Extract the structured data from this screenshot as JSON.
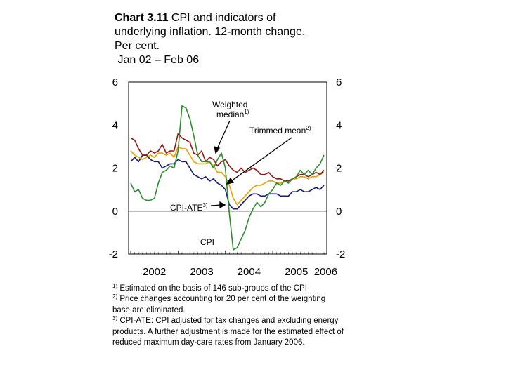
{
  "title": {
    "bold": "Chart 3.11",
    "line1_rest": " CPI and indicators of",
    "line2": "underlying inflation. 12-month change.",
    "line3": "Per cent.",
    "line4": " Jan 02 – Feb 06"
  },
  "footnotes": [
    {
      "mark": "1)",
      "text": " Estimated on the basis of 146 sub-groups of the CPI"
    },
    {
      "mark": "2)",
      "text": " Price changes accounting for 20 per cent of the weighting base are eliminated."
    },
    {
      "mark": "3)",
      "text": " CPI-ATE: CPI adjusted for tax changes and excluding energy products. A further adjustment is made for the estimated effect of reduced maximum day-care rates from January 2006."
    }
  ],
  "chart_data": {
    "type": "line",
    "x_start": "2002-01",
    "x_end": "2006-02",
    "x_ticks": [
      "2002",
      "2003",
      "2004",
      "2005",
      "2006"
    ],
    "ylim": [
      -2,
      6
    ],
    "y_ticks_left": [
      "6",
      "4",
      "2",
      "0",
      "-2"
    ],
    "y_ticks_right": [
      "6",
      "4",
      "2",
      "0",
      "-2"
    ],
    "grid": false,
    "series": [
      {
        "name": "CPI",
        "color": "#2e8b2e",
        "values": [
          1.3,
          0.9,
          1.0,
          0.6,
          0.5,
          0.5,
          0.6,
          1.3,
          1.8,
          1.9,
          2.1,
          2.0,
          2.8,
          4.9,
          4.8,
          4.3,
          3.5,
          2.6,
          2.3,
          2.3,
          2.3,
          2.0,
          2.4,
          2.7,
          2.0,
          -0.1,
          -1.8,
          -1.7,
          -1.3,
          -0.9,
          -0.3,
          0.1,
          0.4,
          0.2,
          0.4,
          0.8,
          1.0,
          1.3,
          1.2,
          1.4,
          1.3,
          1.5,
          1.6,
          1.9,
          1.7,
          1.9,
          1.7,
          2.0,
          2.2,
          2.6
        ]
      },
      {
        "name": "Weighted median",
        "color": "#8b1a1a",
        "values": [
          3.4,
          3.3,
          2.9,
          2.6,
          2.6,
          2.8,
          2.7,
          2.8,
          3.1,
          2.7,
          2.8,
          2.8,
          3.6,
          3.4,
          3.3,
          3.2,
          2.7,
          2.6,
          2.8,
          2.3,
          2.5,
          2.4,
          2.1,
          2.3,
          2.4,
          2.1,
          1.9,
          1.8,
          2.0,
          1.8,
          1.9,
          2.0,
          1.9,
          1.7,
          1.7,
          1.8,
          1.6,
          1.5,
          1.5,
          1.4,
          1.4,
          1.5,
          1.6,
          1.7,
          1.7,
          1.6,
          1.7,
          1.8,
          1.7,
          1.9
        ]
      },
      {
        "name": "Trimmed mean",
        "color": "#e8a000",
        "values": [
          2.8,
          2.6,
          2.5,
          2.4,
          2.5,
          2.6,
          2.5,
          2.7,
          2.7,
          2.6,
          2.7,
          2.5,
          3.0,
          2.9,
          2.9,
          2.6,
          2.3,
          2.2,
          2.2,
          2.2,
          2.3,
          2.1,
          1.8,
          1.8,
          1.6,
          1.2,
          0.6,
          0.3,
          0.5,
          0.7,
          0.9,
          1.1,
          1.2,
          1.2,
          1.3,
          1.4,
          1.4,
          1.3,
          1.3,
          1.4,
          1.4,
          1.5,
          1.5,
          1.6,
          1.6,
          1.5,
          1.6,
          1.6,
          1.7,
          1.8
        ]
      },
      {
        "name": "CPI-ATE",
        "color": "#1a1a6e",
        "values": [
          2.3,
          2.5,
          2.3,
          2.6,
          2.6,
          2.4,
          2.3,
          2.3,
          2.0,
          2.1,
          2.2,
          2.2,
          2.4,
          2.3,
          2.3,
          2.0,
          1.7,
          1.6,
          1.5,
          1.6,
          1.4,
          1.5,
          1.3,
          1.2,
          1.0,
          0.3,
          0.1,
          0.1,
          0.3,
          0.5,
          0.7,
          0.8,
          0.8,
          0.7,
          0.7,
          0.8,
          0.8,
          0.8,
          0.7,
          0.7,
          0.7,
          0.9,
          0.9,
          1.0,
          0.9,
          0.9,
          1.0,
          1.1,
          1.0,
          1.2
        ]
      }
    ],
    "annotations": [
      {
        "text": "Weighted",
        "text2": "median",
        "sup": "1)"
      },
      {
        "text": "Trimmed mean",
        "sup": "2)"
      },
      {
        "text": "CPI-ATE",
        "sup": "3)"
      },
      {
        "text": "CPI"
      }
    ]
  }
}
